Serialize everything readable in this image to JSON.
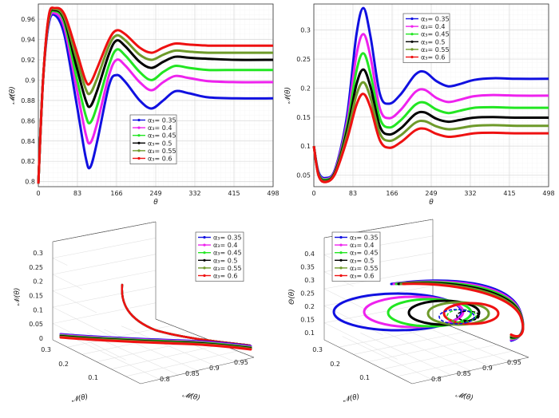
{
  "colors": {
    "0.35": "#1010e0",
    "0.4": "#ee22ee",
    "0.45": "#22e622",
    "0.5": "#000000",
    "0.55": "#6e9a2a",
    "0.6": "#ee1111"
  },
  "chart_data": [
    {
      "id": "top-left",
      "type": "line",
      "xlabel": "θ",
      "ylabel": "𝓜(θ)",
      "x_ticks": [
        "0",
        "83",
        "166",
        "249",
        "332",
        "415",
        "498"
      ],
      "y_ticks": [
        "0.8",
        "0.82",
        "0.84",
        "0.86",
        "0.88",
        "0.9",
        "0.92",
        "0.94",
        "0.96"
      ],
      "xlim": [
        0,
        498
      ],
      "ylim": [
        0.795,
        0.975
      ],
      "legend_position": "center-right",
      "series": [
        {
          "name": "α₃= 0.35",
          "alpha": "0.35",
          "points": [
            [
              0,
              0.798
            ],
            [
              10,
              0.9
            ],
            [
              22,
              0.955
            ],
            [
              35,
              0.964
            ],
            [
              55,
              0.945
            ],
            [
              80,
              0.88
            ],
            [
              100,
              0.825
            ],
            [
              110,
              0.814
            ],
            [
              125,
              0.84
            ],
            [
              150,
              0.895
            ],
            [
              166,
              0.905
            ],
            [
              185,
              0.898
            ],
            [
              215,
              0.88
            ],
            [
              240,
              0.872
            ],
            [
              265,
              0.88
            ],
            [
              290,
              0.889
            ],
            [
              320,
              0.887
            ],
            [
              360,
              0.883
            ],
            [
              420,
              0.882
            ],
            [
              498,
              0.882
            ]
          ]
        },
        {
          "name": "α₃= 0.4",
          "alpha": "0.4",
          "points": [
            [
              0,
              0.798
            ],
            [
              10,
              0.9
            ],
            [
              22,
              0.957
            ],
            [
              35,
              0.966
            ],
            [
              55,
              0.952
            ],
            [
              80,
              0.895
            ],
            [
              100,
              0.848
            ],
            [
              110,
              0.838
            ],
            [
              125,
              0.858
            ],
            [
              150,
              0.905
            ],
            [
              166,
              0.92
            ],
            [
              185,
              0.914
            ],
            [
              215,
              0.898
            ],
            [
              240,
              0.89
            ],
            [
              265,
              0.898
            ],
            [
              290,
              0.904
            ],
            [
              320,
              0.902
            ],
            [
              360,
              0.899
            ],
            [
              420,
              0.898
            ],
            [
              498,
              0.898
            ]
          ]
        },
        {
          "name": "α₃= 0.45",
          "alpha": "0.45",
          "points": [
            [
              0,
              0.798
            ],
            [
              10,
              0.9
            ],
            [
              22,
              0.959
            ],
            [
              35,
              0.968
            ],
            [
              55,
              0.957
            ],
            [
              80,
              0.905
            ],
            [
              100,
              0.866
            ],
            [
              110,
              0.858
            ],
            [
              125,
              0.875
            ],
            [
              150,
              0.915
            ],
            [
              166,
              0.93
            ],
            [
              185,
              0.924
            ],
            [
              215,
              0.908
            ],
            [
              240,
              0.9
            ],
            [
              265,
              0.908
            ],
            [
              290,
              0.914
            ],
            [
              320,
              0.912
            ],
            [
              360,
              0.91
            ],
            [
              420,
              0.91
            ],
            [
              498,
              0.91
            ]
          ]
        },
        {
          "name": "α₃= 0.5",
          "alpha": "0.5",
          "points": [
            [
              0,
              0.798
            ],
            [
              10,
              0.9
            ],
            [
              22,
              0.961
            ],
            [
              35,
              0.969
            ],
            [
              55,
              0.96
            ],
            [
              80,
              0.915
            ],
            [
              100,
              0.881
            ],
            [
              110,
              0.874
            ],
            [
              125,
              0.89
            ],
            [
              150,
              0.926
            ],
            [
              166,
              0.939
            ],
            [
              185,
              0.933
            ],
            [
              215,
              0.918
            ],
            [
              240,
              0.912
            ],
            [
              265,
              0.918
            ],
            [
              290,
              0.923
            ],
            [
              320,
              0.922
            ],
            [
              360,
              0.921
            ],
            [
              420,
              0.92
            ],
            [
              498,
              0.92
            ]
          ]
        },
        {
          "name": "α₃= 0.55",
          "alpha": "0.55",
          "points": [
            [
              0,
              0.798
            ],
            [
              10,
              0.9
            ],
            [
              22,
              0.962
            ],
            [
              35,
              0.97
            ],
            [
              55,
              0.962
            ],
            [
              80,
              0.923
            ],
            [
              100,
              0.892
            ],
            [
              110,
              0.887
            ],
            [
              125,
              0.902
            ],
            [
              150,
              0.934
            ],
            [
              166,
              0.944
            ],
            [
              185,
              0.939
            ],
            [
              215,
              0.925
            ],
            [
              240,
              0.92
            ],
            [
              265,
              0.925
            ],
            [
              290,
              0.929
            ],
            [
              320,
              0.928
            ],
            [
              360,
              0.927
            ],
            [
              420,
              0.927
            ],
            [
              498,
              0.927
            ]
          ]
        },
        {
          "name": "α₃= 0.6",
          "alpha": "0.6",
          "points": [
            [
              0,
              0.798
            ],
            [
              10,
              0.9
            ],
            [
              22,
              0.963
            ],
            [
              35,
              0.971
            ],
            [
              55,
              0.965
            ],
            [
              80,
              0.93
            ],
            [
              100,
              0.9
            ],
            [
              110,
              0.897
            ],
            [
              125,
              0.912
            ],
            [
              150,
              0.94
            ],
            [
              166,
              0.949
            ],
            [
              185,
              0.945
            ],
            [
              215,
              0.932
            ],
            [
              240,
              0.927
            ],
            [
              265,
              0.932
            ],
            [
              290,
              0.936
            ],
            [
              320,
              0.935
            ],
            [
              360,
              0.934
            ],
            [
              420,
              0.934
            ],
            [
              498,
              0.934
            ]
          ]
        }
      ]
    },
    {
      "id": "top-right",
      "type": "line",
      "xlabel": "θ",
      "ylabel": "𝓝(θ)",
      "x_ticks": [
        "0",
        "83",
        "166",
        "249",
        "332",
        "415",
        "498"
      ],
      "y_ticks": [
        "0.05",
        "0.1",
        "0.15",
        "0.2",
        "0.25",
        "0.3"
      ],
      "xlim": [
        0,
        498
      ],
      "ylim": [
        0.03,
        0.345
      ],
      "legend_position": "top-center",
      "series": [
        {
          "name": "α₃= 0.35",
          "alpha": "0.35",
          "points": [
            [
              0,
              0.1
            ],
            [
              10,
              0.055
            ],
            [
              25,
              0.045
            ],
            [
              45,
              0.06
            ],
            [
              70,
              0.15
            ],
            [
              90,
              0.29
            ],
            [
              105,
              0.338
            ],
            [
              120,
              0.29
            ],
            [
              140,
              0.19
            ],
            [
              160,
              0.173
            ],
            [
              185,
              0.19
            ],
            [
              215,
              0.223
            ],
            [
              235,
              0.228
            ],
            [
              260,
              0.212
            ],
            [
              285,
              0.203
            ],
            [
              310,
              0.207
            ],
            [
              340,
              0.214
            ],
            [
              380,
              0.217
            ],
            [
              430,
              0.216
            ],
            [
              498,
              0.216
            ]
          ]
        },
        {
          "name": "α₃= 0.4",
          "alpha": "0.4",
          "points": [
            [
              0,
              0.1
            ],
            [
              10,
              0.053
            ],
            [
              25,
              0.043
            ],
            [
              45,
              0.058
            ],
            [
              70,
              0.14
            ],
            [
              90,
              0.255
            ],
            [
              105,
              0.293
            ],
            [
              120,
              0.255
            ],
            [
              140,
              0.165
            ],
            [
              160,
              0.148
            ],
            [
              185,
              0.163
            ],
            [
              215,
              0.193
            ],
            [
              235,
              0.197
            ],
            [
              260,
              0.183
            ],
            [
              285,
              0.176
            ],
            [
              310,
              0.18
            ],
            [
              340,
              0.186
            ],
            [
              380,
              0.188
            ],
            [
              430,
              0.187
            ],
            [
              498,
              0.187
            ]
          ]
        },
        {
          "name": "α₃= 0.45",
          "alpha": "0.45",
          "points": [
            [
              0,
              0.1
            ],
            [
              10,
              0.052
            ],
            [
              25,
              0.042
            ],
            [
              45,
              0.056
            ],
            [
              70,
              0.132
            ],
            [
              90,
              0.228
            ],
            [
              105,
              0.26
            ],
            [
              120,
              0.225
            ],
            [
              140,
              0.148
            ],
            [
              160,
              0.132
            ],
            [
              185,
              0.145
            ],
            [
              215,
              0.171
            ],
            [
              235,
              0.175
            ],
            [
              260,
              0.163
            ],
            [
              285,
              0.157
            ],
            [
              310,
              0.161
            ],
            [
              340,
              0.166
            ],
            [
              380,
              0.167
            ],
            [
              430,
              0.166
            ],
            [
              498,
              0.166
            ]
          ]
        },
        {
          "name": "α₃= 0.5",
          "alpha": "0.5",
          "points": [
            [
              0,
              0.1
            ],
            [
              10,
              0.051
            ],
            [
              25,
              0.04
            ],
            [
              45,
              0.055
            ],
            [
              70,
              0.125
            ],
            [
              90,
              0.205
            ],
            [
              105,
              0.232
            ],
            [
              120,
              0.203
            ],
            [
              140,
              0.134
            ],
            [
              160,
              0.12
            ],
            [
              185,
              0.131
            ],
            [
              215,
              0.155
            ],
            [
              235,
              0.158
            ],
            [
              260,
              0.147
            ],
            [
              285,
              0.142
            ],
            [
              310,
              0.145
            ],
            [
              340,
              0.149
            ],
            [
              380,
              0.15
            ],
            [
              430,
              0.149
            ],
            [
              498,
              0.149
            ]
          ]
        },
        {
          "name": "α₃= 0.55",
          "alpha": "0.55",
          "points": [
            [
              0,
              0.1
            ],
            [
              10,
              0.05
            ],
            [
              25,
              0.039
            ],
            [
              45,
              0.053
            ],
            [
              70,
              0.118
            ],
            [
              90,
              0.187
            ],
            [
              105,
              0.21
            ],
            [
              120,
              0.184
            ],
            [
              140,
              0.122
            ],
            [
              160,
              0.109
            ],
            [
              185,
              0.119
            ],
            [
              215,
              0.14
            ],
            [
              235,
              0.143
            ],
            [
              260,
              0.134
            ],
            [
              285,
              0.129
            ],
            [
              310,
              0.131
            ],
            [
              340,
              0.135
            ],
            [
              380,
              0.136
            ],
            [
              430,
              0.135
            ],
            [
              498,
              0.135
            ]
          ]
        },
        {
          "name": "α₃= 0.6",
          "alpha": "0.6",
          "points": [
            [
              0,
              0.1
            ],
            [
              10,
              0.049
            ],
            [
              25,
              0.038
            ],
            [
              45,
              0.052
            ],
            [
              70,
              0.11
            ],
            [
              90,
              0.17
            ],
            [
              105,
              0.19
            ],
            [
              120,
              0.167
            ],
            [
              140,
              0.11
            ],
            [
              160,
              0.097
            ],
            [
              185,
              0.107
            ],
            [
              215,
              0.127
            ],
            [
              235,
              0.13
            ],
            [
              260,
              0.121
            ],
            [
              285,
              0.116
            ],
            [
              310,
              0.118
            ],
            [
              340,
              0.122
            ],
            [
              380,
              0.123
            ],
            [
              430,
              0.122
            ],
            [
              498,
              0.122
            ]
          ]
        }
      ]
    },
    {
      "id": "bottom-left",
      "type": "line3d",
      "xlabel": "𝓜(θ)",
      "ylabel": "𝓝(θ)",
      "zlabel": "𝓝ᵢ(θ)",
      "x_ticks": [
        "0.8",
        "0.85",
        "0.9",
        "0.95"
      ],
      "y_ticks": [
        "0.1",
        "0.2",
        "0.3"
      ],
      "z_ticks": [
        "0",
        "0.05",
        "0.1",
        "0.15",
        "0.2",
        "0.25",
        "0.3"
      ],
      "legend_position": "top-right",
      "legend": [
        "α₃= 0.35",
        "α₃= 0.4",
        "α₃= 0.45",
        "α₃= 0.5",
        "α₃= 0.55",
        "α₃= 0.6"
      ]
    },
    {
      "id": "bottom-right",
      "type": "line3d",
      "xlabel": "𝓜(θ)",
      "ylabel": "𝓝(θ)",
      "zlabel": "Θ(θ)",
      "x_ticks": [
        "0.8",
        "0.85",
        "0.9",
        "0.95"
      ],
      "y_ticks": [
        "0.1",
        "0.2",
        "0.3"
      ],
      "z_ticks": [
        "0.1",
        "0.15",
        "0.2",
        "0.25",
        "0.3",
        "0.35",
        "0.4"
      ],
      "legend_position": "top-left",
      "legend": [
        "α₃= 0.35",
        "α₃= 0.4",
        "α₃= 0.45",
        "α₃= 0.5",
        "α₃= 0.55",
        "α₃= 0.6"
      ]
    }
  ]
}
